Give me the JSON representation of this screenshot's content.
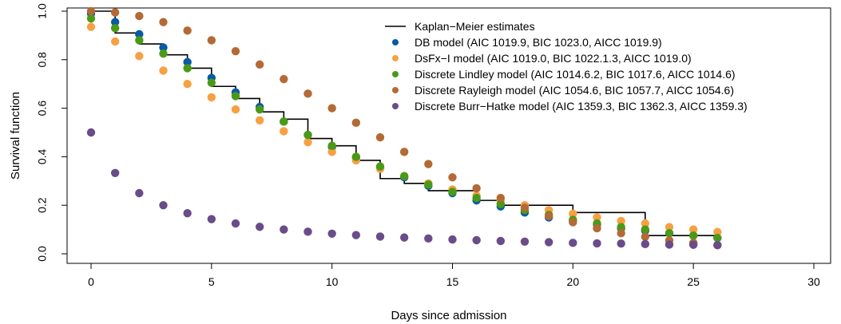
{
  "chart_data": {
    "type": "scatter",
    "title": "",
    "xlabel": "Days since admission",
    "ylabel": "Survival function",
    "xlim": [
      0,
      30
    ],
    "ylim": [
      0,
      1
    ],
    "xticks": [
      0,
      5,
      10,
      15,
      20,
      25,
      30
    ],
    "yticks": [
      "0.0",
      "0.2",
      "0.4",
      "0.6",
      "0.8",
      "1.0"
    ],
    "grid": false,
    "legend_position": "top-right",
    "step_series": {
      "name": "Kaplan−Meier estimates",
      "color": "#000000",
      "x": [
        0,
        1,
        2,
        3,
        4,
        5,
        6,
        7,
        8,
        9,
        10,
        11,
        12,
        13,
        14,
        16,
        17,
        19,
        20,
        23,
        26
      ],
      "y": [
        1.0,
        0.91,
        0.865,
        0.82,
        0.765,
        0.69,
        0.64,
        0.585,
        0.555,
        0.475,
        0.445,
        0.385,
        0.31,
        0.29,
        0.26,
        0.22,
        0.2,
        0.2,
        0.17,
        0.075,
        0.075
      ]
    },
    "series": [
      {
        "name": "DB model (AIC 1019.9, BIC 1023.0, AICC 1019.9)",
        "color": "#0a5aa5",
        "x": [
          0,
          1,
          2,
          3,
          4,
          5,
          6,
          7,
          8,
          9,
          10,
          11,
          12,
          13,
          14,
          15,
          16,
          17,
          18,
          19,
          20,
          21,
          22,
          23,
          24,
          25,
          26
        ],
        "y": [
          0.99,
          0.955,
          0.905,
          0.85,
          0.79,
          0.725,
          0.665,
          0.605,
          0.545,
          0.49,
          0.44,
          0.395,
          0.355,
          0.315,
          0.28,
          0.25,
          0.22,
          0.195,
          0.17,
          0.15,
          0.135,
          0.12,
          0.105,
          0.095,
          0.085,
          0.075,
          0.065
        ]
      },
      {
        "name": "DsFx−I model (AIC 1019.0, BIC 1022.1.3, AICC 1019.0)",
        "color": "#f7a043",
        "x": [
          0,
          1,
          2,
          3,
          4,
          5,
          6,
          7,
          8,
          9,
          10,
          11,
          12,
          13,
          14,
          15,
          16,
          17,
          18,
          19,
          20,
          21,
          22,
          23,
          24,
          25,
          26
        ],
        "y": [
          0.935,
          0.875,
          0.815,
          0.755,
          0.7,
          0.645,
          0.595,
          0.55,
          0.505,
          0.46,
          0.42,
          0.385,
          0.35,
          0.32,
          0.29,
          0.265,
          0.24,
          0.22,
          0.2,
          0.18,
          0.165,
          0.15,
          0.135,
          0.125,
          0.11,
          0.1,
          0.09
        ]
      },
      {
        "name": "Discrete Lindley model (AIC 1014.6.2, BIC 1017.6, AICC 1014.6)",
        "color": "#4a9a17",
        "x": [
          0,
          1,
          2,
          3,
          4,
          5,
          6,
          7,
          8,
          9,
          10,
          11,
          12,
          13,
          14,
          15,
          16,
          17,
          18,
          19,
          20,
          21,
          22,
          23,
          24,
          25,
          26
        ],
        "y": [
          0.97,
          0.93,
          0.88,
          0.825,
          0.765,
          0.705,
          0.65,
          0.595,
          0.545,
          0.49,
          0.445,
          0.4,
          0.36,
          0.32,
          0.285,
          0.255,
          0.23,
          0.205,
          0.18,
          0.16,
          0.14,
          0.125,
          0.11,
          0.1,
          0.085,
          0.075,
          0.065
        ]
      },
      {
        "name": "Discrete Rayleigh model (AIC 1054.6, BIC 1057.7, AICC 1054.6)",
        "color": "#b46a35",
        "x": [
          0,
          1,
          2,
          3,
          4,
          5,
          6,
          7,
          8,
          9,
          10,
          11,
          12,
          13,
          14,
          15,
          16,
          17,
          18,
          19,
          20,
          21,
          22,
          23,
          24,
          25,
          26
        ],
        "y": [
          1.0,
          0.995,
          0.98,
          0.955,
          0.92,
          0.88,
          0.835,
          0.78,
          0.72,
          0.66,
          0.6,
          0.54,
          0.48,
          0.42,
          0.37,
          0.315,
          0.27,
          0.23,
          0.19,
          0.155,
          0.13,
          0.105,
          0.085,
          0.07,
          0.055,
          0.045,
          0.035
        ]
      },
      {
        "name": "Discrete Burr−Hatke model (AIC 1359.3, BIC 1362.3, AICC 1359.3)",
        "color": "#6a4c8a",
        "x": [
          0,
          1,
          2,
          3,
          4,
          5,
          6,
          7,
          8,
          9,
          10,
          11,
          12,
          13,
          14,
          15,
          16,
          17,
          18,
          19,
          20,
          21,
          22,
          23,
          24,
          25,
          26
        ],
        "y": [
          0.5,
          0.333,
          0.25,
          0.2,
          0.167,
          0.143,
          0.125,
          0.111,
          0.1,
          0.091,
          0.083,
          0.077,
          0.071,
          0.067,
          0.063,
          0.059,
          0.056,
          0.053,
          0.05,
          0.048,
          0.045,
          0.043,
          0.042,
          0.04,
          0.038,
          0.037,
          0.036
        ]
      }
    ]
  }
}
